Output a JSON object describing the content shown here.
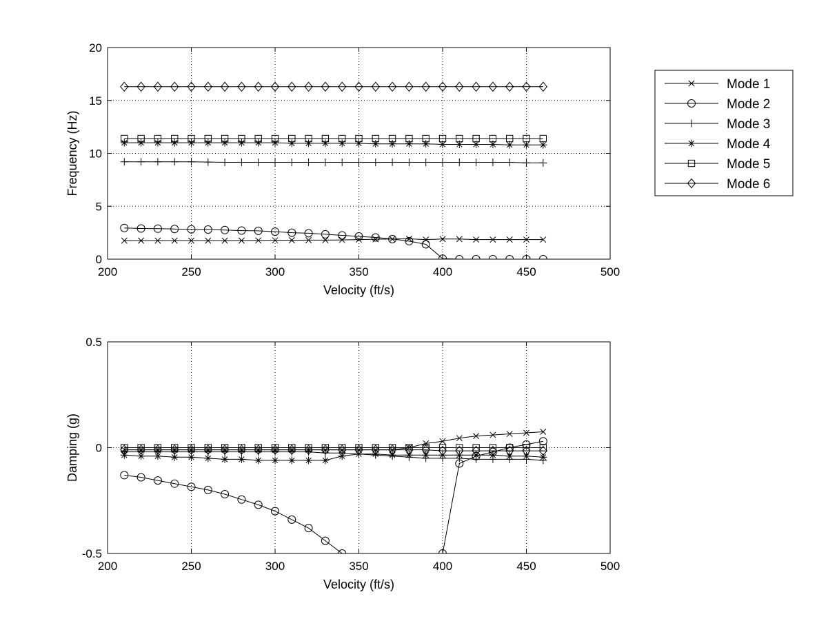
{
  "chart_data": [
    {
      "type": "line",
      "xlabel": "Velocity (ft/s)",
      "ylabel": "Frequency (Hz)",
      "xlim": [
        200,
        500
      ],
      "ylim": [
        0,
        20
      ],
      "xticks": [
        "200",
        "250",
        "300",
        "350",
        "400",
        "450",
        "500"
      ],
      "yticks": [
        "0",
        "5",
        "10",
        "15",
        "20"
      ],
      "grid": true,
      "legend_position": "outside-right",
      "x": [
        210,
        220,
        230,
        240,
        250,
        260,
        270,
        280,
        290,
        300,
        310,
        320,
        330,
        340,
        350,
        360,
        370,
        380,
        390,
        400,
        410,
        420,
        430,
        440,
        450,
        460
      ],
      "series": [
        {
          "name": "Mode 1",
          "marker": "x",
          "values": [
            1.75,
            1.75,
            1.75,
            1.75,
            1.75,
            1.75,
            1.75,
            1.76,
            1.77,
            1.78,
            1.79,
            1.8,
            1.8,
            1.82,
            1.85,
            1.88,
            1.9,
            1.92,
            1.85,
            1.9,
            1.9,
            1.85,
            1.85,
            1.85,
            1.85,
            1.85
          ]
        },
        {
          "name": "Mode 2",
          "marker": "circle",
          "values": [
            2.95,
            2.9,
            2.88,
            2.85,
            2.82,
            2.8,
            2.75,
            2.7,
            2.68,
            2.6,
            2.5,
            2.45,
            2.35,
            2.25,
            2.15,
            2.05,
            1.9,
            1.7,
            1.4,
            0.05,
            0.0,
            0.0,
            0.0,
            0.0,
            0.0,
            0.0
          ]
        },
        {
          "name": "Mode 3",
          "marker": "plus",
          "values": [
            9.2,
            9.2,
            9.2,
            9.2,
            9.2,
            9.18,
            9.15,
            9.15,
            9.15,
            9.15,
            9.15,
            9.15,
            9.15,
            9.15,
            9.15,
            9.15,
            9.15,
            9.15,
            9.15,
            9.15,
            9.15,
            9.15,
            9.15,
            9.15,
            9.1,
            9.1
          ]
        },
        {
          "name": "Mode 4",
          "marker": "star",
          "values": [
            11.0,
            11.0,
            11.0,
            11.0,
            11.0,
            11.0,
            11.0,
            11.0,
            11.0,
            11.0,
            10.95,
            10.95,
            10.95,
            10.95,
            10.95,
            10.9,
            10.9,
            10.9,
            10.9,
            10.85,
            10.85,
            10.85,
            10.85,
            10.8,
            10.8,
            10.8
          ]
        },
        {
          "name": "Mode 5",
          "marker": "square",
          "values": [
            11.4,
            11.4,
            11.4,
            11.4,
            11.4,
            11.4,
            11.4,
            11.4,
            11.4,
            11.4,
            11.4,
            11.4,
            11.4,
            11.4,
            11.4,
            11.4,
            11.4,
            11.4,
            11.4,
            11.4,
            11.4,
            11.4,
            11.4,
            11.4,
            11.4,
            11.4
          ]
        },
        {
          "name": "Mode 6",
          "marker": "diamond",
          "values": [
            16.3,
            16.3,
            16.3,
            16.3,
            16.3,
            16.3,
            16.3,
            16.3,
            16.3,
            16.3,
            16.3,
            16.3,
            16.3,
            16.3,
            16.3,
            16.3,
            16.3,
            16.3,
            16.3,
            16.3,
            16.3,
            16.3,
            16.3,
            16.3,
            16.3,
            16.3
          ]
        }
      ]
    },
    {
      "type": "line",
      "xlabel": "Velocity (ft/s)",
      "ylabel": "Damping (g)",
      "xlim": [
        200,
        500
      ],
      "ylim": [
        -0.5,
        0.5
      ],
      "xticks": [
        "200",
        "250",
        "300",
        "350",
        "400",
        "450",
        "500"
      ],
      "yticks": [
        "-0.5",
        "0",
        "0.5"
      ],
      "grid": true,
      "x": [
        210,
        220,
        230,
        240,
        250,
        260,
        270,
        280,
        290,
        300,
        310,
        320,
        330,
        340,
        350,
        360,
        370,
        380,
        390,
        400,
        410,
        420,
        430,
        440,
        450,
        460
      ],
      "series": [
        {
          "name": "Mode 1",
          "marker": "x",
          "values": [
            -0.01,
            -0.01,
            -0.01,
            -0.01,
            -0.01,
            -0.01,
            -0.01,
            -0.01,
            -0.01,
            -0.01,
            -0.01,
            -0.01,
            -0.01,
            -0.01,
            -0.01,
            -0.01,
            -0.01,
            0.0,
            0.02,
            0.03,
            0.045,
            0.055,
            0.06,
            0.065,
            0.07,
            0.075
          ]
        },
        {
          "name": "Mode 2",
          "marker": "circle",
          "values": [
            -0.13,
            -0.14,
            -0.155,
            -0.17,
            -0.185,
            -0.2,
            -0.22,
            -0.245,
            -0.27,
            -0.3,
            -0.34,
            -0.38,
            -0.44,
            -0.5,
            null,
            null,
            null,
            null,
            null,
            -0.5,
            -0.075,
            -0.04,
            -0.02,
            0.0,
            0.015,
            0.03
          ]
        },
        {
          "name": "Mode 3",
          "marker": "plus",
          "values": [
            -0.02,
            -0.02,
            -0.02,
            -0.02,
            -0.02,
            -0.02,
            -0.02,
            -0.02,
            -0.02,
            -0.02,
            -0.02,
            -0.02,
            -0.025,
            -0.025,
            -0.03,
            -0.035,
            -0.04,
            -0.045,
            -0.05,
            -0.05,
            -0.05,
            -0.055,
            -0.055,
            -0.055,
            -0.055,
            -0.06
          ]
        },
        {
          "name": "Mode 4",
          "marker": "star",
          "values": [
            -0.035,
            -0.04,
            -0.04,
            -0.045,
            -0.045,
            -0.05,
            -0.055,
            -0.055,
            -0.06,
            -0.06,
            -0.06,
            -0.06,
            -0.06,
            -0.04,
            -0.03,
            -0.03,
            -0.035,
            -0.035,
            -0.035,
            -0.035,
            -0.035,
            -0.035,
            -0.035,
            -0.04,
            -0.04,
            -0.045
          ]
        },
        {
          "name": "Mode 5",
          "marker": "square",
          "values": [
            0.0,
            0.0,
            0.0,
            0.0,
            0.0,
            0.0,
            0.0,
            0.0,
            0.0,
            0.0,
            0.0,
            0.0,
            0.0,
            0.0,
            0.0,
            0.0,
            0.0,
            0.0,
            0.0,
            0.0,
            0.0,
            0.0,
            0.0,
            0.0,
            0.0,
            0.0
          ]
        },
        {
          "name": "Mode 6",
          "marker": "diamond",
          "values": [
            -0.01,
            -0.01,
            -0.01,
            -0.01,
            -0.01,
            -0.01,
            -0.01,
            -0.01,
            -0.01,
            -0.01,
            -0.01,
            -0.01,
            -0.01,
            -0.01,
            -0.01,
            -0.01,
            -0.01,
            -0.01,
            -0.01,
            -0.015,
            -0.015,
            -0.015,
            -0.015,
            -0.015,
            -0.015,
            -0.015
          ]
        }
      ]
    }
  ],
  "legend": {
    "items": [
      "Mode 1",
      "Mode 2",
      "Mode 3",
      "Mode 4",
      "Mode 5",
      "Mode 6"
    ]
  }
}
